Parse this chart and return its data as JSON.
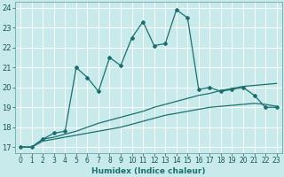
{
  "xlabel": "Humidex (Indice chaleur)",
  "xlim": [
    -0.5,
    23.5
  ],
  "ylim": [
    16.7,
    24.3
  ],
  "xticks": [
    0,
    1,
    2,
    3,
    4,
    5,
    6,
    7,
    8,
    9,
    10,
    11,
    12,
    13,
    14,
    15,
    16,
    17,
    18,
    19,
    20,
    21,
    22,
    23
  ],
  "yticks": [
    17,
    18,
    19,
    20,
    21,
    22,
    23,
    24
  ],
  "bg_color": "#c8eaea",
  "grid_color": "#b0d8d8",
  "line_color": "#1a7070",
  "main_x": [
    0,
    1,
    2,
    3,
    4,
    5,
    6,
    7,
    8,
    9,
    10,
    11,
    12,
    13,
    14,
    15,
    16,
    17,
    18,
    19,
    20,
    21,
    22,
    23
  ],
  "main_y": [
    17.0,
    17.0,
    17.4,
    17.7,
    17.8,
    21.0,
    20.5,
    19.8,
    21.5,
    21.1,
    22.5,
    23.3,
    22.1,
    22.2,
    23.9,
    23.5,
    19.9,
    20.0,
    19.8,
    19.9,
    20.0,
    19.6,
    19.0,
    19.0
  ],
  "line2_x": [
    0,
    1,
    2,
    3,
    4,
    5,
    6,
    7,
    8,
    9,
    10,
    11,
    12,
    13,
    14,
    15,
    16,
    17,
    18,
    19,
    20,
    21,
    22,
    23
  ],
  "line2_y": [
    17.0,
    17.0,
    17.4,
    17.5,
    17.65,
    17.8,
    18.0,
    18.2,
    18.35,
    18.5,
    18.65,
    18.8,
    19.0,
    19.15,
    19.3,
    19.45,
    19.6,
    19.7,
    19.85,
    19.95,
    20.05,
    20.1,
    20.15,
    20.2
  ],
  "line3_x": [
    0,
    1,
    2,
    3,
    4,
    5,
    6,
    7,
    8,
    9,
    10,
    11,
    12,
    13,
    14,
    15,
    16,
    17,
    18,
    19,
    20,
    21,
    22,
    23
  ],
  "line3_y": [
    17.0,
    17.0,
    17.3,
    17.4,
    17.5,
    17.6,
    17.7,
    17.8,
    17.9,
    18.0,
    18.15,
    18.3,
    18.45,
    18.6,
    18.7,
    18.8,
    18.9,
    19.0,
    19.05,
    19.1,
    19.15,
    19.2,
    19.15,
    19.05
  ]
}
